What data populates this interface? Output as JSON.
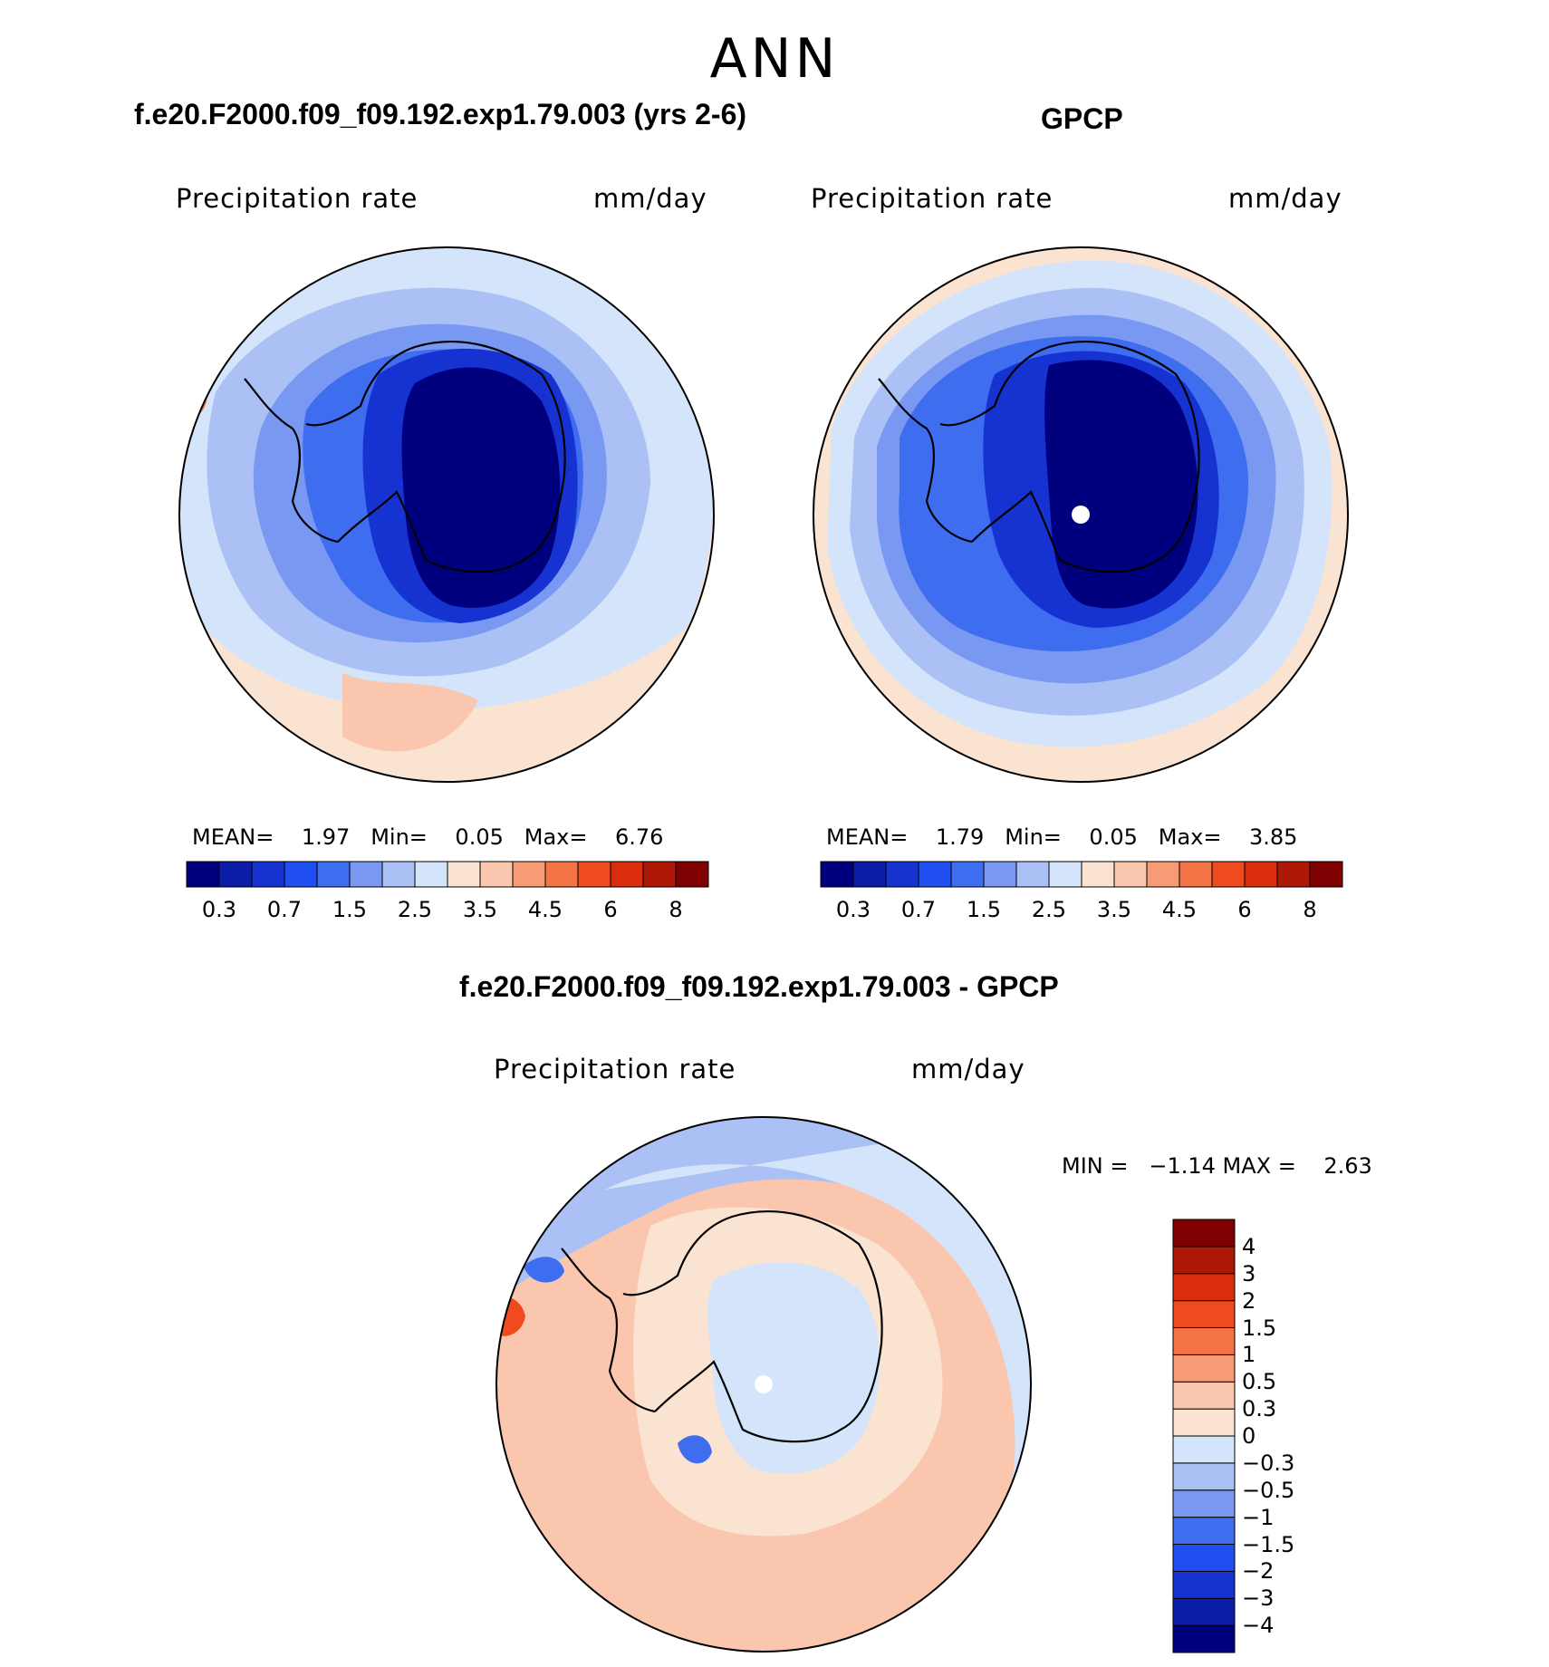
{
  "season": "ANN",
  "panels": [
    {
      "title": "f.e20.F2000.f09_f09.192.exp1.79.003 (yrs 2-6)",
      "variable": "Precipitation rate",
      "units": "mm/day",
      "stats": {
        "mean_label": "MEAN=",
        "mean": "1.97",
        "min_label": "Min=",
        "min": "0.05",
        "max_label": "Max=",
        "max": "6.76"
      }
    },
    {
      "title": "GPCP",
      "variable": "Precipitation rate",
      "units": "mm/day",
      "stats": {
        "mean_label": "MEAN=",
        "mean": "1.79",
        "min_label": "Min=",
        "min": "0.05",
        "max_label": "Max=",
        "max": "3.85"
      }
    }
  ],
  "diff_panel": {
    "title": "f.e20.F2000.f09_f09.192.exp1.79.003 - GPCP",
    "variable": "Precipitation rate",
    "units": "mm/day",
    "minmax": "MIN =   −1.14 MAX =    2.63"
  },
  "abs_colorbar": {
    "colors": [
      "#00007f",
      "#0b1ca6",
      "#1633d1",
      "#1f4ff0",
      "#3f6df0",
      "#7898f2",
      "#abc1f5",
      "#d3e4fb",
      "#fbe3d2",
      "#fac6ad",
      "#f69b76",
      "#f47445",
      "#f04a1f",
      "#d92d0e",
      "#ad1807",
      "#7f0000"
    ],
    "ticks": [
      "0.3",
      "0.7",
      "1.5",
      "2.5",
      "3.5",
      "4.5",
      "6",
      "8"
    ]
  },
  "diff_colorbar": {
    "colors": [
      "#00007f",
      "#0b1ca6",
      "#1633d1",
      "#1f4ff0",
      "#3f6df0",
      "#7898f2",
      "#abc1f5",
      "#d3e4fb",
      "#fbe3d2",
      "#fac6ad",
      "#f69b76",
      "#f47445",
      "#f04a1f",
      "#d92d0e",
      "#ad1807",
      "#7f0000"
    ],
    "ticks": [
      "−4",
      "−3",
      "−2",
      "−1.5",
      "−1",
      "−0.5",
      "−0.3",
      "0",
      "0.3",
      "0.5",
      "1",
      "1.5",
      "2",
      "3",
      "4"
    ]
  }
}
